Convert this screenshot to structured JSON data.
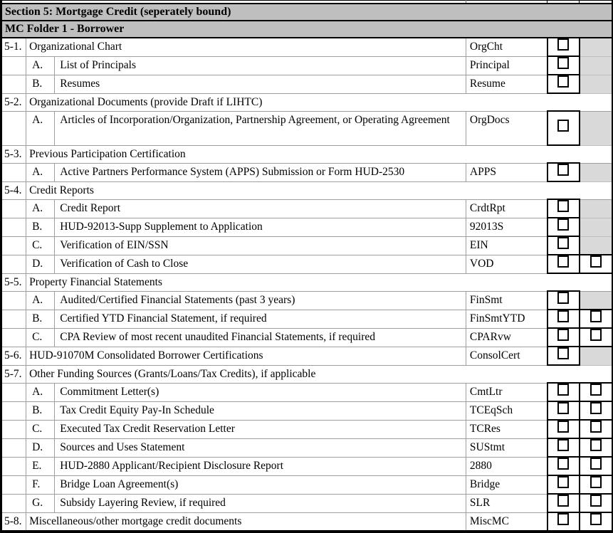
{
  "header": {
    "section_title": "Section 5: Mortgage Credit (seperately bound)",
    "folder_title": "MC Folder 1 - Borrower"
  },
  "colors": {
    "header_bg": "#bfbfbf",
    "shaded_cell_bg": "#d9d9d9",
    "grid_line": "#9e9e9e",
    "border": "#000000"
  },
  "table": {
    "rows": [
      {
        "num": "5-1.",
        "letter": "",
        "desc": "Organizational Chart",
        "code": "OrgCht",
        "checkboxes": 1
      },
      {
        "num": "",
        "letter": "A.",
        "desc": "List of Principals",
        "code": "Principal",
        "checkboxes": 1
      },
      {
        "num": "",
        "letter": "B.",
        "desc": "Resumes",
        "code": "Resume",
        "checkboxes": 1
      },
      {
        "num": "5-2.",
        "letter": "",
        "desc": "Organizational Documents (provide Draft if LIHTC)",
        "code": "",
        "checkboxes": 0
      },
      {
        "num": "",
        "letter": "A.",
        "desc": "Articles of Incorporation/Organization, Partnership Agreement, or Operating Agreement",
        "code": "OrgDocs",
        "checkboxes": 1,
        "tall": true
      },
      {
        "num": "5-3.",
        "letter": "",
        "desc": "Previous Participation Certification",
        "code": "",
        "checkboxes": 0
      },
      {
        "num": "",
        "letter": "A.",
        "desc": "Active Partners Performance System (APPS) Submission or Form HUD-2530",
        "code": "APPS",
        "checkboxes": 1
      },
      {
        "num": "5-4.",
        "letter": "",
        "desc": "Credit Reports",
        "code": "",
        "checkboxes": 0
      },
      {
        "num": "",
        "letter": "A.",
        "desc": "Credit Report",
        "code": "CrdtRpt",
        "checkboxes": 1
      },
      {
        "num": "",
        "letter": "B.",
        "desc": "HUD-92013-Supp Supplement to Application",
        "code": "92013S",
        "checkboxes": 1
      },
      {
        "num": "",
        "letter": "C.",
        "desc": "Verification of EIN/SSN",
        "code": "EIN",
        "checkboxes": 1
      },
      {
        "num": "",
        "letter": "D.",
        "desc": "Verification of Cash to Close",
        "code": "VOD",
        "checkboxes": 2
      },
      {
        "num": "5-5.",
        "letter": "",
        "desc": "Property Financial Statements",
        "code": "",
        "checkboxes": 0
      },
      {
        "num": "",
        "letter": "A.",
        "desc": "Audited/Certified Financial Statements (past 3 years)",
        "code": "FinSmt",
        "checkboxes": 1
      },
      {
        "num": "",
        "letter": "B.",
        "desc": "Certified YTD Financial Statement, if required",
        "code": "FinSmtYTD",
        "checkboxes": 2
      },
      {
        "num": "",
        "letter": "C.",
        "desc": "CPA Review of most recent unaudited Financial Statements, if required",
        "code": "CPARvw",
        "checkboxes": 2
      },
      {
        "num": "5-6.",
        "letter": "",
        "desc": "HUD-91070M Consolidated Borrower Certifications",
        "code": "ConsolCert",
        "checkboxes": 1
      },
      {
        "num": "5-7.",
        "letter": "",
        "desc": "Other Funding Sources (Grants/Loans/Tax Credits), if applicable",
        "code": "",
        "checkboxes": 0
      },
      {
        "num": "",
        "letter": "A.",
        "desc": "Commitment Letter(s)",
        "code": "CmtLtr",
        "checkboxes": 2
      },
      {
        "num": "",
        "letter": "B.",
        "desc": "Tax Credit Equity Pay-In Schedule",
        "code": "TCEqSch",
        "checkboxes": 2
      },
      {
        "num": "",
        "letter": "C.",
        "desc": "Executed Tax Credit Reservation Letter",
        "code": "TCRes",
        "checkboxes": 2
      },
      {
        "num": "",
        "letter": "D.",
        "desc": "Sources and Uses Statement",
        "code": "SUStmt",
        "checkboxes": 2
      },
      {
        "num": "",
        "letter": "E.",
        "desc": "HUD-2880 Applicant/Recipient Disclosure Report",
        "code": "2880",
        "checkboxes": 2
      },
      {
        "num": "",
        "letter": "F.",
        "desc": "Bridge Loan Agreement(s)",
        "code": "Bridge",
        "checkboxes": 2
      },
      {
        "num": "",
        "letter": "G.",
        "desc": "Subsidy Layering Review, if required",
        "code": "SLR",
        "checkboxes": 2
      },
      {
        "num": "5-8.",
        "letter": "",
        "desc": "Miscellaneous/other mortgage credit documents",
        "code": "MiscMC",
        "checkboxes": 2
      }
    ]
  }
}
